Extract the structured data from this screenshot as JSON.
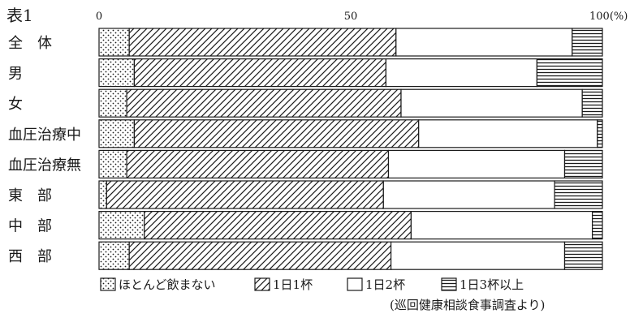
{
  "chart_data": {
    "type": "bar",
    "orientation": "horizontal",
    "stacked": true,
    "title": "表1",
    "axis": {
      "ticks": [
        "0",
        "50",
        "100(%)"
      ],
      "xlim": [
        0,
        100
      ]
    },
    "categories": [
      "全　体",
      "男",
      "女",
      "血圧治療中",
      "血圧治療無",
      "東　部",
      "中　部",
      "西　部"
    ],
    "series": [
      {
        "name": "ほとんど飲まない",
        "pattern": "dots",
        "values": [
          6,
          7,
          5.5,
          7,
          5.5,
          1.5,
          9,
          6
        ]
      },
      {
        "name": "1日1杯",
        "pattern": "diagonal",
        "values": [
          53,
          50,
          54.5,
          56.5,
          52,
          55,
          53,
          52
        ]
      },
      {
        "name": "1日2杯",
        "pattern": "blank",
        "values": [
          35,
          30,
          36,
          35.5,
          35,
          34,
          36,
          34.5
        ]
      },
      {
        "name": "1日3杯以上",
        "pattern": "horizontal",
        "values": [
          6,
          13,
          4,
          1,
          7.5,
          9.5,
          2,
          7.5
        ]
      }
    ],
    "legend_position": "bottom",
    "source_note": "(巡回健康相談食事調査より)",
    "colors": {
      "ink": "#1a1a1a",
      "fill": "#ffffff"
    }
  }
}
